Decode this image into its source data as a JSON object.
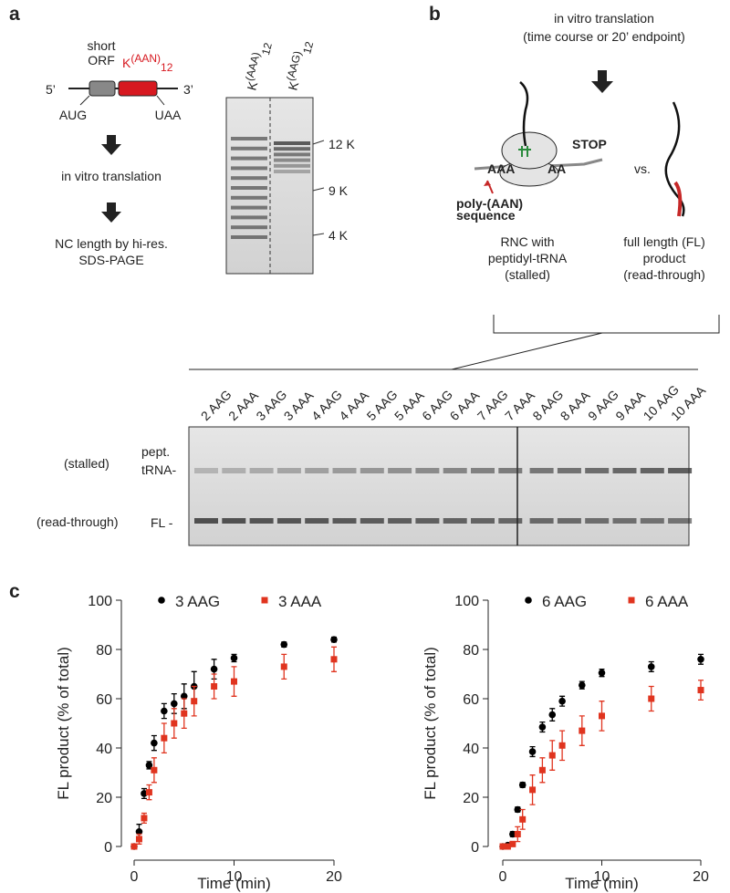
{
  "panel_a": {
    "letter": "a",
    "orf": [
      "short",
      "ORF"
    ],
    "repeat": {
      "base": "K",
      "sup": "(AAN)",
      "sub": "12"
    },
    "five": "5’",
    "three": "3’",
    "start": "AUG",
    "stop": "UAA",
    "step1": "in vitro translation",
    "step2": [
      "NC length by hi-res.",
      "SDS-PAGE"
    ],
    "lanes": [
      {
        "base": "K",
        "sup": "(AAA)",
        "sub": "12"
      },
      {
        "base": "K",
        "sup": "(AAG)",
        "sub": "12"
      }
    ],
    "markers": [
      "12 K",
      "9 K",
      "4 K"
    ]
  },
  "panel_b": {
    "letter": "b",
    "header": [
      "in vitro translation",
      "(time course or 20’ endpoint)"
    ],
    "stop": "STOP",
    "aaa_left": "AAA",
    "aaa_right": "AA",
    "callout": [
      "poly-(AAN)",
      "sequence"
    ],
    "vs": "vs.",
    "rnc": [
      "RNC with",
      "peptidyl-tRNA",
      "(stalled)"
    ],
    "fl": [
      "full length (FL)",
      "product",
      "(read-through)"
    ],
    "lanes": [
      "2 AAG",
      "2 AAA",
      "3 AAG",
      "3 AAA",
      "4 AAG",
      "4 AAA",
      "5 AAG",
      "5 AAA",
      "6 AAG",
      "6 AAA",
      "7 AAG",
      "7 AAA",
      "8 AAG",
      "8 AAA",
      "9 AAG",
      "9 AAA",
      "10 AAG",
      "10 AAA"
    ],
    "row_stalled": "(stalled)",
    "row_read": "(read-through)",
    "band_pept": [
      "pept.",
      "tRNA-"
    ],
    "band_fl": "FL -"
  },
  "panel_c": {
    "letter": "c"
  },
  "chart_data": [
    {
      "type": "scatter",
      "x_label": "Time (min)",
      "y_label": "FL product (% of total)",
      "x": [
        0,
        0.5,
        1,
        1.5,
        2,
        3,
        4,
        5,
        6,
        8,
        10,
        15,
        20
      ],
      "xlim": [
        0,
        20
      ],
      "xticks": [
        0,
        10,
        20
      ],
      "ylim": [
        0,
        100
      ],
      "yticks": [
        0,
        20,
        40,
        60,
        80,
        100
      ],
      "legend": "top-left",
      "series": [
        {
          "name": "3 AAG",
          "color": "#000000",
          "marker": "circle",
          "values": [
            0,
            6,
            21.5,
            33,
            42,
            55,
            58,
            61,
            65,
            72,
            76.5,
            82,
            84
          ],
          "errors": [
            1,
            3,
            2,
            1.5,
            3,
            3,
            4,
            5,
            6,
            4,
            1.5,
            1,
            1
          ]
        },
        {
          "name": "3 AAA",
          "color": "#e0341f",
          "marker": "square",
          "values": [
            0,
            3,
            11.5,
            22,
            31,
            44,
            50,
            54,
            59,
            65,
            67,
            73,
            76
          ],
          "errors": [
            1,
            2,
            2,
            3,
            5,
            6,
            6,
            6,
            6,
            5,
            6,
            5,
            5
          ]
        }
      ]
    },
    {
      "type": "scatter",
      "x_label": "Time (min)",
      "y_label": "FL product (% of total)",
      "x": [
        0,
        0.5,
        1,
        1.5,
        2,
        3,
        4,
        5,
        6,
        8,
        10,
        15,
        20
      ],
      "xlim": [
        0,
        20
      ],
      "xticks": [
        0,
        10,
        20
      ],
      "ylim": [
        0,
        100
      ],
      "yticks": [
        0,
        20,
        40,
        60,
        80,
        100
      ],
      "legend": "top-left",
      "series": [
        {
          "name": "6 AAG",
          "color": "#000000",
          "marker": "circle",
          "values": [
            0,
            0.5,
            5,
            15,
            25,
            38.5,
            48.5,
            53.5,
            59,
            65.5,
            70.5,
            73,
            76
          ],
          "errors": [
            0.5,
            0.5,
            1,
            1,
            1,
            2,
            2,
            2.5,
            2,
            1.5,
            1.5,
            2,
            2
          ]
        },
        {
          "name": "6 AAA",
          "color": "#e0341f",
          "marker": "square",
          "values": [
            0,
            0,
            1,
            5,
            11,
            23,
            31,
            37,
            41,
            47,
            53,
            60,
            63.5
          ],
          "errors": [
            0.5,
            0.5,
            1,
            3,
            4,
            6,
            5,
            6,
            6,
            6,
            6,
            5,
            4
          ]
        }
      ]
    }
  ]
}
